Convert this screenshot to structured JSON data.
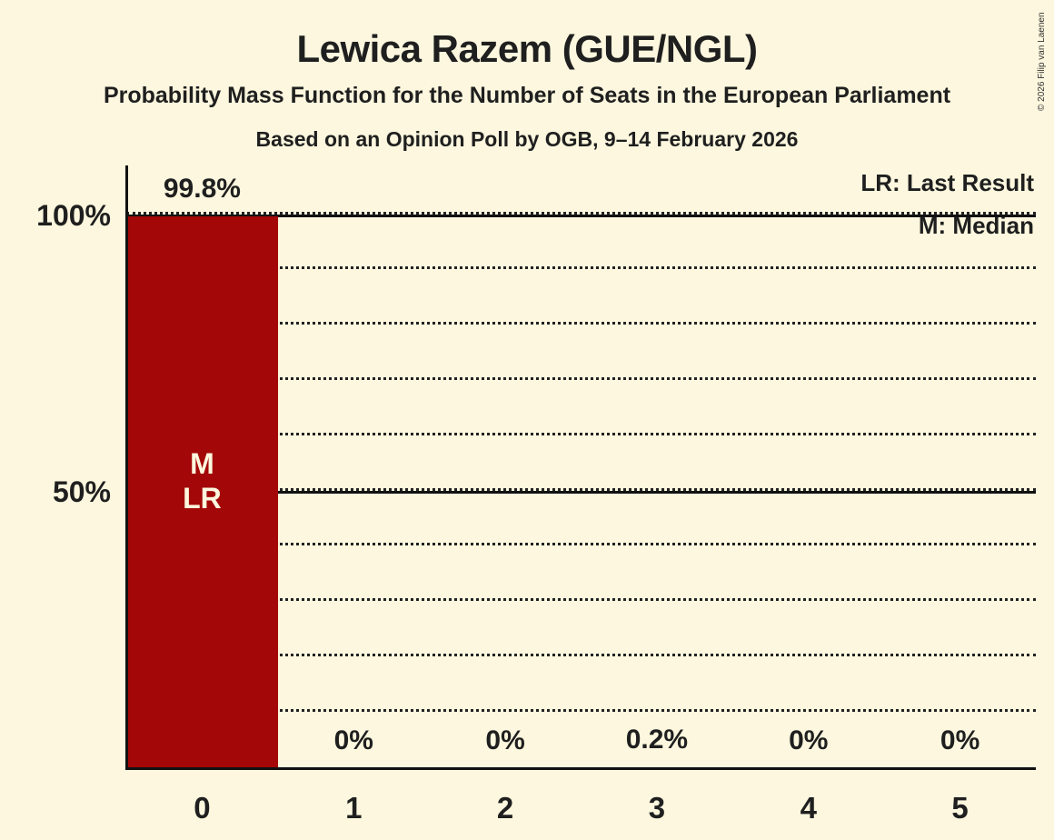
{
  "title": "Lewica Razem (GUE/NGL)",
  "subtitle": "Probability Mass Function for the Number of Seats in the European Parliament",
  "poll_line": "Based on an Opinion Poll by OGB, 9–14 February 2026",
  "copyright": "© 2026 Filip van Laenen",
  "legend": {
    "last_result": "LR: Last Result",
    "median": "M: Median"
  },
  "colors": {
    "background": "#FCF7DE",
    "bar": "#A30707",
    "bar_label": "#FCF7DE",
    "text": "#1F1F1F",
    "gridline": "#222222"
  },
  "chart_data": {
    "type": "bar",
    "title": "Lewica Razem (GUE/NGL)",
    "categories": [
      "0",
      "1",
      "2",
      "3",
      "4",
      "5"
    ],
    "values": [
      99.8,
      0,
      0,
      0.2,
      0,
      0
    ],
    "value_labels": [
      "99.8%",
      "0%",
      "0%",
      "0.2%",
      "0%",
      "0%"
    ],
    "ylim": [
      0,
      100
    ],
    "ytick_labels": [
      "100%",
      "50%"
    ],
    "ytick_percents": [
      100,
      50
    ],
    "gridline_percents": [
      10,
      20,
      30,
      40,
      50,
      60,
      70,
      80,
      90,
      100
    ],
    "solid_line_percents": [
      50,
      100
    ],
    "grid_style": "dotted",
    "legend_position": "top-right",
    "median_category": "0",
    "last_result_category": "0",
    "annotations": [
      {
        "category": "0",
        "lines": [
          "M",
          "LR"
        ]
      }
    ]
  }
}
